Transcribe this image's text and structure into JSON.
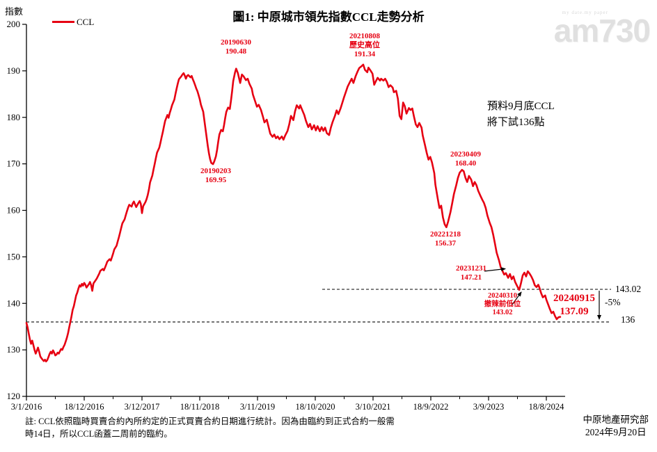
{
  "header": {
    "title": "圖1: 中原城市領先指數CCL走勢分析",
    "y_axis_title": "指數",
    "legend_label": "CCL"
  },
  "watermark": {
    "logo": "am730",
    "tagline": "my date.my paper"
  },
  "forecast_note": {
    "line1": "預料9月底CCL",
    "line2": "將下試136點"
  },
  "right_labels": {
    "upper": "143.02",
    "drop": "-5%",
    "lower": "136"
  },
  "annotations": {
    "a20190630": {
      "line1": "20190630",
      "line2": "190.48"
    },
    "a20210808": {
      "line1": "20210808",
      "line2": "歷史高位",
      "line3": "191.34"
    },
    "a20190203": {
      "line1": "20190203",
      "line2": "169.95"
    },
    "a20230409": {
      "line1": "20230409",
      "line2": "168.40"
    },
    "a20221218": {
      "line1": "20221218",
      "line2": "156.37"
    },
    "a20231231": {
      "line1": "20231231",
      "line2": "147.21"
    },
    "a20240310": {
      "line1": "20240310",
      "line2": "撤辣前低位",
      "line3": "143.02"
    },
    "a20240915": {
      "line1": "20240915",
      "line2": "137.09"
    }
  },
  "footer": {
    "note_line1": "註: CCL依照臨時買賣合約內所約定的正式買賣合約日期進行統計。因為由臨約到正式合約一般需",
    "note_line2": "時14日，所以CCL函蓋二周前的臨約。",
    "credit_line1": "中原地產研究部",
    "credit_line2": "2024年9月20日"
  },
  "colors": {
    "line": "#e60012",
    "annotation_red": "#e60012",
    "axis": "#000000",
    "ref_line": "#222222"
  },
  "chart_data": {
    "type": "line",
    "title": "圖1: 中原城市領先指數CCL走勢分析",
    "ylabel": "指數",
    "series_name": "CCL",
    "ylim": [
      120,
      200
    ],
    "y_ticks": [
      200,
      190,
      180,
      170,
      160,
      150,
      140,
      130,
      120
    ],
    "x_tick_labels": [
      "3/1/2016",
      "18/12/2016",
      "3/12/2017",
      "18/11/2018",
      "3/11/2019",
      "18/10/2020",
      "3/10/2021",
      "18/9/2022",
      "3/9/2023",
      "18/8/2024"
    ],
    "weeks_per_tick": 50,
    "legend_position": "top-left",
    "grid": false,
    "reference_lines": [
      {
        "value": 143.02,
        "label": "143.02"
      },
      {
        "value": 136,
        "label": "136"
      }
    ],
    "key_points": [
      {
        "date": "20190203",
        "value": 169.95
      },
      {
        "date": "20190630",
        "value": 190.48
      },
      {
        "date": "20210808",
        "value": 191.34,
        "note": "歷史高位"
      },
      {
        "date": "20221218",
        "value": 156.37
      },
      {
        "date": "20230409",
        "value": 168.4
      },
      {
        "date": "20231231",
        "value": 147.21
      },
      {
        "date": "20240310",
        "value": 143.02,
        "note": "撤辣前低位"
      },
      {
        "date": "20240915",
        "value": 137.09
      }
    ],
    "points": [
      [
        0,
        135.8
      ],
      [
        1,
        134.8
      ],
      [
        2,
        133.5
      ],
      [
        3,
        132.2
      ],
      [
        4,
        131.3
      ],
      [
        5,
        132.0
      ],
      [
        6,
        131.0
      ],
      [
        7,
        130.0
      ],
      [
        8,
        129.2
      ],
      [
        9,
        129.8
      ],
      [
        10,
        130.5
      ],
      [
        11,
        129.6
      ],
      [
        12,
        128.6
      ],
      [
        13,
        128.2
      ],
      [
        14,
        127.9
      ],
      [
        15,
        127.6
      ],
      [
        16,
        127.9
      ],
      [
        17,
        127.5
      ],
      [
        18,
        127.8
      ],
      [
        19,
        128.4
      ],
      [
        20,
        129.1
      ],
      [
        21,
        129.6
      ],
      [
        22,
        129.2
      ],
      [
        23,
        129.9
      ],
      [
        24,
        129.4
      ],
      [
        25,
        128.8
      ],
      [
        26,
        129.0
      ],
      [
        27,
        129.4
      ],
      [
        28,
        129.2
      ],
      [
        29,
        129.7
      ],
      [
        30,
        130.2
      ],
      [
        31,
        130.0
      ],
      [
        32,
        130.6
      ],
      [
        33,
        131.1
      ],
      [
        34,
        131.8
      ],
      [
        35,
        132.6
      ],
      [
        36,
        133.6
      ],
      [
        37,
        134.8
      ],
      [
        38,
        136.0
      ],
      [
        39,
        137.2
      ],
      [
        40,
        138.6
      ],
      [
        41,
        139.4
      ],
      [
        42,
        140.5
      ],
      [
        43,
        141.7
      ],
      [
        44,
        142.3
      ],
      [
        45,
        143.2
      ],
      [
        46,
        143.9
      ],
      [
        47,
        143.6
      ],
      [
        48,
        144.2
      ],
      [
        49,
        143.8
      ],
      [
        50,
        144.4
      ],
      [
        51,
        144.0
      ],
      [
        52,
        143.4
      ],
      [
        54,
        144.1
      ],
      [
        55,
        144.6
      ],
      [
        56,
        143.9
      ],
      [
        57,
        142.7
      ],
      [
        58,
        144.3
      ],
      [
        60,
        145.0
      ],
      [
        61,
        145.4
      ],
      [
        62,
        145.9
      ],
      [
        63,
        146.4
      ],
      [
        64,
        147.0
      ],
      [
        66,
        147.4
      ],
      [
        67,
        147.1
      ],
      [
        68,
        147.7
      ],
      [
        69,
        148.3
      ],
      [
        70,
        149.0
      ],
      [
        72,
        149.5
      ],
      [
        73,
        149.2
      ],
      [
        74,
        149.9
      ],
      [
        75,
        150.7
      ],
      [
        76,
        151.6
      ],
      [
        78,
        152.4
      ],
      [
        79,
        153.3
      ],
      [
        80,
        154.2
      ],
      [
        81,
        155.2
      ],
      [
        82,
        156.2
      ],
      [
        83,
        157.2
      ],
      [
        85,
        158.1
      ],
      [
        86,
        159.0
      ],
      [
        87,
        159.8
      ],
      [
        88,
        160.6
      ],
      [
        89,
        161.2
      ],
      [
        91,
        160.8
      ],
      [
        92,
        161.5
      ],
      [
        93,
        161.9
      ],
      [
        94,
        161.3
      ],
      [
        95,
        160.7
      ],
      [
        97,
        161.6
      ],
      [
        98,
        162.0
      ],
      [
        99,
        161.4
      ],
      [
        100,
        159.4
      ],
      [
        101,
        160.9
      ],
      [
        103,
        161.8
      ],
      [
        104,
        162.4
      ],
      [
        105,
        163.3
      ],
      [
        106,
        164.5
      ],
      [
        107,
        166.0
      ],
      [
        109,
        167.5
      ],
      [
        110,
        168.8
      ],
      [
        111,
        170.0
      ],
      [
        112,
        171.2
      ],
      [
        113,
        172.4
      ],
      [
        115,
        173.5
      ],
      [
        116,
        174.6
      ],
      [
        117,
        175.7
      ],
      [
        118,
        176.8
      ],
      [
        119,
        178.0
      ],
      [
        120,
        179.2
      ],
      [
        122,
        180.5
      ],
      [
        123,
        179.9
      ],
      [
        124,
        180.9
      ],
      [
        125,
        181.7
      ],
      [
        126,
        182.6
      ],
      [
        128,
        183.8
      ],
      [
        129,
        185.0
      ],
      [
        130,
        186.2
      ],
      [
        131,
        187.3
      ],
      [
        132,
        188.2
      ],
      [
        134,
        188.8
      ],
      [
        135,
        189.2
      ],
      [
        136,
        189.5
      ],
      [
        137,
        189.0
      ],
      [
        138,
        188.3
      ],
      [
        139,
        188.9
      ],
      [
        140,
        189.1
      ],
      [
        142,
        188.6
      ],
      [
        143,
        188.9
      ],
      [
        144,
        188.2
      ],
      [
        145,
        187.6
      ],
      [
        146,
        186.9
      ],
      [
        147,
        186.2
      ],
      [
        148,
        185.6
      ],
      [
        149,
        184.8
      ],
      [
        150,
        183.9
      ],
      [
        151,
        182.7
      ],
      [
        153,
        181.2
      ],
      [
        154,
        179.4
      ],
      [
        155,
        177.5
      ],
      [
        156,
        175.6
      ],
      [
        157,
        173.8
      ],
      [
        158,
        172.2
      ],
      [
        159,
        171.0
      ],
      [
        160,
        170.2
      ],
      [
        161.5,
        169.95
      ],
      [
        162.5,
        170.5
      ],
      [
        164,
        171.6
      ],
      [
        165,
        173.0
      ],
      [
        166,
        174.8
      ],
      [
        167,
        176.3
      ],
      [
        168.5,
        177.3
      ],
      [
        170,
        177.0
      ],
      [
        171,
        178.3
      ],
      [
        172,
        179.8
      ],
      [
        173,
        181.2
      ],
      [
        174.5,
        182.1
      ],
      [
        176,
        181.8
      ],
      [
        177,
        183.5
      ],
      [
        178,
        185.6
      ],
      [
        179,
        187.8
      ],
      [
        180.5,
        189.6
      ],
      [
        181.5,
        190.48
      ],
      [
        183,
        189.5
      ],
      [
        185,
        187.4
      ],
      [
        186.5,
        189.2
      ],
      [
        188,
        188.8
      ],
      [
        190,
        188.0
      ],
      [
        191.5,
        188.3
      ],
      [
        193,
        187.2
      ],
      [
        195,
        186.2
      ],
      [
        196,
        184.9
      ],
      [
        198,
        183.4
      ],
      [
        199.5,
        182.3
      ],
      [
        201,
        182.7
      ],
      [
        203,
        181.6
      ],
      [
        204.5,
        180.3
      ],
      [
        206,
        178.9
      ],
      [
        208,
        179.5
      ],
      [
        209.5,
        178.0
      ],
      [
        211,
        176.5
      ],
      [
        213,
        175.8
      ],
      [
        214.5,
        176.3
      ],
      [
        216,
        175.5
      ],
      [
        217.5,
        175.9
      ],
      [
        219,
        175.3
      ],
      [
        221,
        175.9
      ],
      [
        222.5,
        175.2
      ],
      [
        224,
        176.1
      ],
      [
        226,
        177.1
      ],
      [
        227.5,
        178.5
      ],
      [
        229,
        180.3
      ],
      [
        231,
        179.4
      ],
      [
        232.5,
        181.3
      ],
      [
        234,
        182.6
      ],
      [
        236,
        181.9
      ],
      [
        237,
        182.6
      ],
      [
        239,
        181.4
      ],
      [
        240.5,
        180.5
      ],
      [
        242,
        179.2
      ],
      [
        244,
        177.9
      ],
      [
        245.5,
        178.6
      ],
      [
        247,
        177.4
      ],
      [
        249,
        178.3
      ],
      [
        250.5,
        177.2
      ],
      [
        252,
        178.1
      ],
      [
        254,
        177.0
      ],
      [
        255.5,
        177.9
      ],
      [
        257,
        177.1
      ],
      [
        258.5,
        177.8
      ],
      [
        260,
        176.6
      ],
      [
        262,
        176.2
      ],
      [
        263.5,
        177.8
      ],
      [
        265,
        179.0
      ],
      [
        267,
        180.3
      ],
      [
        268.5,
        181.5
      ],
      [
        270,
        180.7
      ],
      [
        272,
        182.0
      ],
      [
        273.5,
        183.2
      ],
      [
        275,
        184.4
      ],
      [
        276.5,
        185.5
      ],
      [
        278,
        186.6
      ],
      [
        280,
        187.6
      ],
      [
        281.5,
        188.3
      ],
      [
        283,
        187.4
      ],
      [
        285,
        188.9
      ],
      [
        286.5,
        189.8
      ],
      [
        288,
        190.6
      ],
      [
        290,
        191.0
      ],
      [
        291.5,
        191.34
      ],
      [
        293,
        190.2
      ],
      [
        295,
        189.7
      ],
      [
        296,
        190.7
      ],
      [
        298,
        190.0
      ],
      [
        299.5,
        189.4
      ],
      [
        301,
        187.0
      ],
      [
        302.5,
        187.8
      ],
      [
        304,
        188.5
      ],
      [
        306,
        187.9
      ],
      [
        307,
        188.3
      ],
      [
        309,
        187.9
      ],
      [
        310.5,
        188.3
      ],
      [
        312,
        187.6
      ],
      [
        313.5,
        186.5
      ],
      [
        315,
        186.9
      ],
      [
        317,
        186.4
      ],
      [
        318,
        185.4
      ],
      [
        320,
        185.7
      ],
      [
        321.5,
        184.0
      ],
      [
        323,
        180.3
      ],
      [
        324.5,
        179.6
      ],
      [
        326,
        183.2
      ],
      [
        327.5,
        182.4
      ],
      [
        329,
        180.8
      ],
      [
        331,
        182.0
      ],
      [
        332.5,
        181.6
      ],
      [
        334,
        181.9
      ],
      [
        335.5,
        180.1
      ],
      [
        337,
        178.5
      ],
      [
        338.5,
        177.9
      ],
      [
        340,
        178.8
      ],
      [
        342,
        177.8
      ],
      [
        343,
        176.1
      ],
      [
        345,
        174.0
      ],
      [
        346.5,
        172.3
      ],
      [
        348,
        170.9
      ],
      [
        349.5,
        171.5
      ],
      [
        351,
        170.3
      ],
      [
        353,
        168.0
      ],
      [
        354,
        165.5
      ],
      [
        356,
        162.5
      ],
      [
        357.5,
        160.5
      ],
      [
        359,
        161.0
      ],
      [
        360.5,
        158.5
      ],
      [
        362,
        157.0
      ],
      [
        363.5,
        156.37
      ],
      [
        365,
        157.6
      ],
      [
        367,
        159.6
      ],
      [
        368.5,
        161.5
      ],
      [
        370,
        163.5
      ],
      [
        372,
        165.4
      ],
      [
        373.5,
        167.0
      ],
      [
        375,
        168.1
      ],
      [
        377,
        168.7
      ],
      [
        378.5,
        168.4
      ],
      [
        380,
        167.0
      ],
      [
        381.5,
        166.1
      ],
      [
        383,
        167.4
      ],
      [
        385,
        166.6
      ],
      [
        386.5,
        165.2
      ],
      [
        388,
        166.1
      ],
      [
        389.5,
        165.4
      ],
      [
        391,
        164.2
      ],
      [
        393,
        163.1
      ],
      [
        394.5,
        162.3
      ],
      [
        396,
        161.6
      ],
      [
        397.5,
        160.5
      ],
      [
        399,
        158.9
      ],
      [
        401,
        157.3
      ],
      [
        402.5,
        156.4
      ],
      [
        404,
        154.8
      ],
      [
        405.5,
        152.9
      ],
      [
        407,
        150.9
      ],
      [
        409,
        149.3
      ],
      [
        410.5,
        147.8
      ],
      [
        412,
        147.0
      ],
      [
        413.5,
        146.2
      ],
      [
        415,
        146.5
      ],
      [
        417,
        145.5
      ],
      [
        418.5,
        146.3
      ],
      [
        420,
        145.2
      ],
      [
        421.5,
        145.8
      ],
      [
        423,
        144.6
      ],
      [
        425,
        143.6
      ],
      [
        426.5,
        142.9
      ],
      [
        428,
        144.3
      ],
      [
        429.5,
        146.0
      ],
      [
        431,
        146.6
      ],
      [
        432.5,
        145.8
      ],
      [
        434,
        146.9
      ],
      [
        435.5,
        146.4
      ],
      [
        437,
        145.8
      ],
      [
        438.5,
        145.0
      ],
      [
        440,
        143.9
      ],
      [
        441.5,
        143.5
      ],
      [
        443,
        144.0
      ],
      [
        444,
        143.4
      ],
      [
        445.5,
        142.2
      ],
      [
        447,
        141.3
      ],
      [
        449,
        141.7
      ],
      [
        450,
        140.8
      ],
      [
        451.5,
        139.8
      ],
      [
        453,
        138.8
      ],
      [
        454.5,
        137.9
      ],
      [
        456,
        138.2
      ],
      [
        457.5,
        137.3
      ],
      [
        459,
        136.6
      ],
      [
        460.5,
        137.0
      ],
      [
        462,
        137.09
      ]
    ]
  }
}
